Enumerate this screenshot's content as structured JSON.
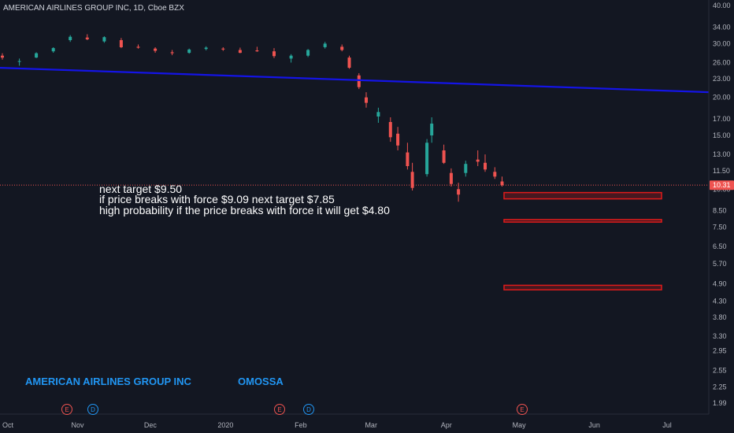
{
  "header": {
    "title": "AMERICAN AIRLINES GROUP INC, 1D, Cboe BZX"
  },
  "watermark": {
    "symbol": "AMERICAN AIRLINES GROUP INC",
    "author": "OMOSSA"
  },
  "notes": [
    "next target $9.50",
    "if price breaks with force $9.09 next target $7.85",
    "high probability if the price breaks with force it will get $4.80"
  ],
  "price_axis": {
    "ticks": [
      "40.00",
      "34.00",
      "30.00",
      "26.00",
      "23.00",
      "20.00",
      "17.00",
      "15.00",
      "13.00",
      "11.50",
      "10.00",
      "8.50",
      "7.50",
      "6.50",
      "5.70",
      "4.90",
      "4.30",
      "3.80",
      "3.30",
      "2.95",
      "2.55",
      "2.25",
      "1.99"
    ],
    "last_price": "10.31"
  },
  "time_axis": {
    "ticks": [
      "Oct",
      "Nov",
      "Dec",
      "2020",
      "Feb",
      "Mar",
      "Apr",
      "May",
      "Jun",
      "Jul"
    ]
  },
  "events": [
    {
      "type": "earnings",
      "label": "E",
      "color": "#ef5350"
    },
    {
      "type": "dividend",
      "label": "D",
      "color": "#2196f3"
    },
    {
      "type": "earnings",
      "label": "E",
      "color": "#ef5350"
    },
    {
      "type": "dividend",
      "label": "D",
      "color": "#2196f3"
    },
    {
      "type": "earnings",
      "label": "E",
      "color": "#ef5350"
    }
  ],
  "colors": {
    "background": "#131722",
    "up": "#26a69a",
    "down": "#ef5350",
    "trendline": "#1414e6",
    "target_box": "#e01b1b",
    "axis_text": "#b2b5be"
  },
  "chart_data": {
    "type": "candlestick",
    "title": "AMERICAN AIRLINES GROUP INC, 1D, Cboe BZX",
    "scale": "log",
    "ylim": [
      1.9,
      41
    ],
    "x_range": [
      "2019-10-01",
      "2020-07-31"
    ],
    "last_price": 10.31,
    "candles_sampled": [
      {
        "date": "2019-10-01",
        "o": 27.4,
        "h": 27.9,
        "l": 26.6,
        "c": 27.0
      },
      {
        "date": "2019-10-08",
        "o": 26.2,
        "h": 26.8,
        "l": 25.4,
        "c": 26.3
      },
      {
        "date": "2019-10-15",
        "o": 27.0,
        "h": 28.1,
        "l": 26.9,
        "c": 27.9
      },
      {
        "date": "2019-10-22",
        "o": 28.3,
        "h": 29.2,
        "l": 28.0,
        "c": 29.0
      },
      {
        "date": "2019-10-29",
        "o": 30.8,
        "h": 32.0,
        "l": 30.4,
        "c": 31.6
      },
      {
        "date": "2019-11-05",
        "o": 31.4,
        "h": 32.2,
        "l": 30.8,
        "c": 31.0
      },
      {
        "date": "2019-11-12",
        "o": 30.5,
        "h": 31.7,
        "l": 30.2,
        "c": 31.5
      },
      {
        "date": "2019-11-19",
        "o": 30.8,
        "h": 31.3,
        "l": 29.0,
        "c": 29.2
      },
      {
        "date": "2019-11-26",
        "o": 29.3,
        "h": 29.8,
        "l": 28.9,
        "c": 29.1
      },
      {
        "date": "2019-12-03",
        "o": 28.9,
        "h": 29.2,
        "l": 28.0,
        "c": 28.4
      },
      {
        "date": "2019-12-10",
        "o": 28.1,
        "h": 28.6,
        "l": 27.5,
        "c": 27.9
      },
      {
        "date": "2019-12-17",
        "o": 28.0,
        "h": 28.9,
        "l": 27.8,
        "c": 28.7
      },
      {
        "date": "2019-12-24",
        "o": 28.8,
        "h": 29.4,
        "l": 28.5,
        "c": 29.1
      },
      {
        "date": "2019-12-31",
        "o": 28.9,
        "h": 29.2,
        "l": 28.4,
        "c": 28.7
      },
      {
        "date": "2020-01-07",
        "o": 28.6,
        "h": 29.1,
        "l": 27.9,
        "c": 28.0
      },
      {
        "date": "2020-01-14",
        "o": 28.5,
        "h": 29.3,
        "l": 28.2,
        "c": 28.3
      },
      {
        "date": "2020-01-21",
        "o": 28.3,
        "h": 29.0,
        "l": 26.9,
        "c": 27.3
      },
      {
        "date": "2020-01-28",
        "o": 26.8,
        "h": 27.7,
        "l": 26.0,
        "c": 27.4
      },
      {
        "date": "2020-02-04",
        "o": 27.4,
        "h": 28.8,
        "l": 27.1,
        "c": 28.6
      },
      {
        "date": "2020-02-11",
        "o": 29.2,
        "h": 30.4,
        "l": 28.9,
        "c": 30.0
      },
      {
        "date": "2020-02-18",
        "o": 29.3,
        "h": 29.8,
        "l": 28.3,
        "c": 28.6
      },
      {
        "date": "2020-02-21",
        "o": 27.0,
        "h": 27.4,
        "l": 24.8,
        "c": 25.0
      },
      {
        "date": "2020-02-25",
        "o": 23.6,
        "h": 24.0,
        "l": 21.3,
        "c": 21.6
      },
      {
        "date": "2020-02-28",
        "o": 20.0,
        "h": 20.8,
        "l": 18.5,
        "c": 19.2
      },
      {
        "date": "2020-03-04",
        "o": 17.3,
        "h": 18.5,
        "l": 16.5,
        "c": 17.9
      },
      {
        "date": "2020-03-09",
        "o": 16.6,
        "h": 17.2,
        "l": 14.3,
        "c": 14.8
      },
      {
        "date": "2020-03-12",
        "o": 15.2,
        "h": 16.0,
        "l": 13.4,
        "c": 13.9
      },
      {
        "date": "2020-03-16",
        "o": 13.2,
        "h": 14.2,
        "l": 11.6,
        "c": 11.9
      },
      {
        "date": "2020-03-18",
        "o": 11.4,
        "h": 12.2,
        "l": 9.9,
        "c": 10.1
      },
      {
        "date": "2020-03-24",
        "o": 11.2,
        "h": 14.6,
        "l": 11.0,
        "c": 14.2
      },
      {
        "date": "2020-03-26",
        "o": 15.0,
        "h": 17.2,
        "l": 14.2,
        "c": 16.4
      },
      {
        "date": "2020-03-31",
        "o": 13.4,
        "h": 14.0,
        "l": 12.1,
        "c": 12.2
      },
      {
        "date": "2020-04-03",
        "o": 11.3,
        "h": 11.7,
        "l": 10.2,
        "c": 10.4
      },
      {
        "date": "2020-04-06",
        "o": 10.0,
        "h": 10.5,
        "l": 9.1,
        "c": 9.6
      },
      {
        "date": "2020-04-09",
        "o": 11.3,
        "h": 12.4,
        "l": 11.0,
        "c": 12.1
      },
      {
        "date": "2020-04-14",
        "o": 12.5,
        "h": 13.4,
        "l": 11.9,
        "c": 12.3
      },
      {
        "date": "2020-04-17",
        "o": 12.2,
        "h": 13.0,
        "l": 11.4,
        "c": 11.6
      },
      {
        "date": "2020-04-21",
        "o": 11.4,
        "h": 11.8,
        "l": 10.8,
        "c": 11.0
      },
      {
        "date": "2020-04-24",
        "o": 10.6,
        "h": 11.0,
        "l": 10.2,
        "c": 10.31
      }
    ],
    "trendline": {
      "points": [
        {
          "date": "2019-10-01",
          "price": 25.0
        },
        {
          "date": "2020-07-31",
          "price": 20.8
        }
      ]
    },
    "target_zones": [
      {
        "label": "$9.50",
        "low": 9.3,
        "high": 9.75
      },
      {
        "label": "$7.85",
        "low": 7.8,
        "high": 7.95
      },
      {
        "label": "$4.80",
        "low": 4.68,
        "high": 4.84
      }
    ]
  }
}
